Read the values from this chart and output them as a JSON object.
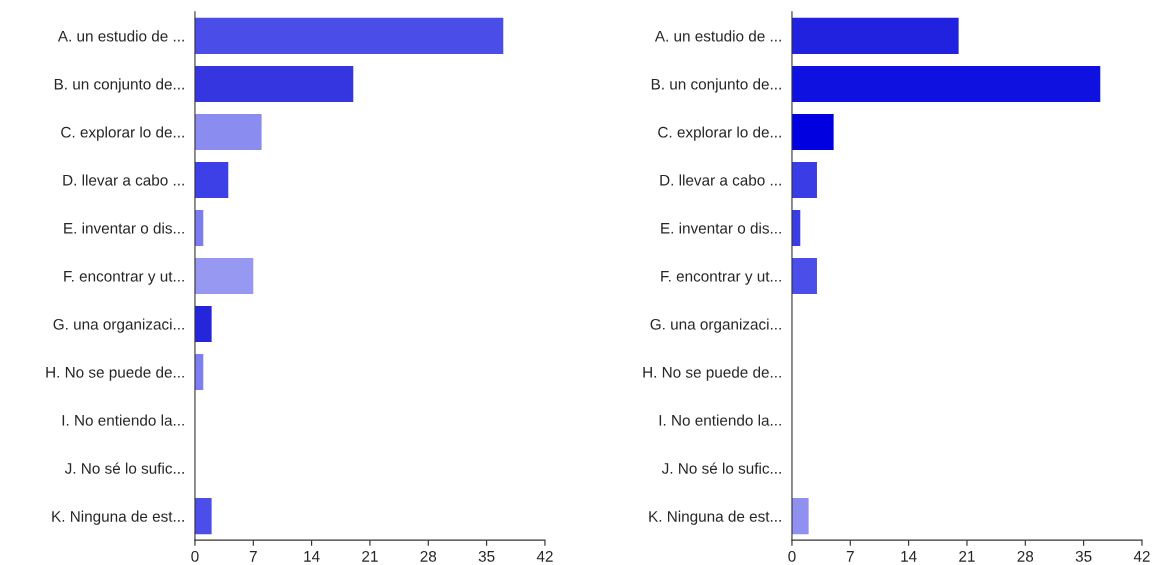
{
  "chart_data": [
    {
      "type": "bar",
      "orientation": "horizontal",
      "categories": [
        "A. un estudio de ...",
        "B. un conjunto de...",
        "C. explorar lo de...",
        "D. llevar a cabo ...",
        "E. inventar o dis...",
        "F. encontrar y ut...",
        "G. una organizaci...",
        "H. No se puede de...",
        "I. No entiendo la...",
        "J. No sé lo sufic...",
        "K. Ninguna de est..."
      ],
      "values": [
        37,
        19,
        8,
        4,
        1,
        7,
        2,
        1,
        0,
        0,
        2
      ],
      "colors": [
        "#4a4de8",
        "#3536e0",
        "#8a8cf0",
        "#3d40e6",
        "#7a7cf0",
        "#9798f2",
        "#2526dc",
        "#7c7ef2",
        "#7c7ef2",
        "#7c7ef2",
        "#4b4ee8"
      ],
      "xlim": [
        0,
        42
      ],
      "xticks": [
        0,
        7,
        14,
        21,
        28,
        35,
        42
      ],
      "grid": false,
      "legend": false
    },
    {
      "type": "bar",
      "orientation": "horizontal",
      "categories": [
        "A. un estudio de ...",
        "B. un conjunto de...",
        "C. explorar lo de...",
        "D. llevar a cabo ...",
        "E. inventar o dis...",
        "F. encontrar y ut...",
        "G. una organizaci...",
        "H. No se puede de...",
        "I. No entiendo la...",
        "J. No sé lo sufic...",
        "K. Ninguna de est..."
      ],
      "values": [
        20,
        37,
        5,
        3,
        1,
        3,
        0,
        0,
        0,
        0,
        2
      ],
      "colors": [
        "#2022e0",
        "#0f11e0",
        "#0000e0",
        "#3a3ce6",
        "#3a3ce6",
        "#4b4ee8",
        "#4b4ee8",
        "#4b4ee8",
        "#4b4ee8",
        "#4b4ee8",
        "#9090f0"
      ],
      "xlim": [
        0,
        42
      ],
      "xticks": [
        0,
        7,
        14,
        21,
        28,
        35,
        42
      ],
      "grid": false,
      "legend": false
    }
  ]
}
